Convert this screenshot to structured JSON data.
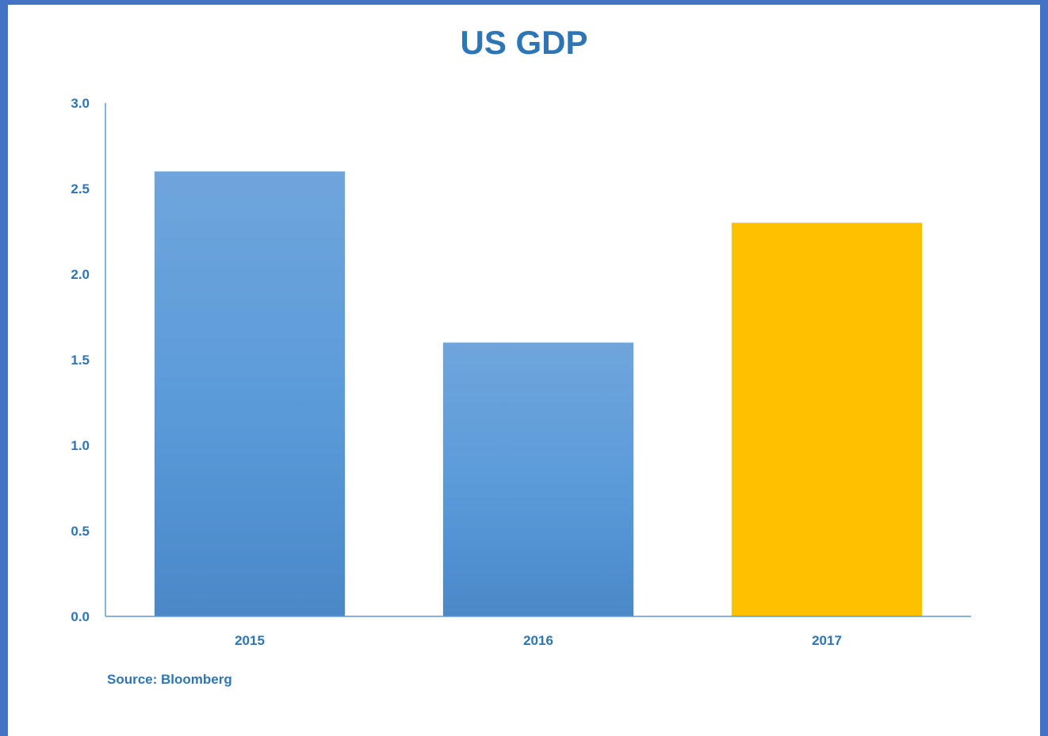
{
  "chart_data": {
    "type": "bar",
    "title": "US GDP",
    "categories": [
      "2015",
      "2016",
      "2017"
    ],
    "values": [
      2.6,
      1.6,
      2.3
    ],
    "bar_colors": [
      "#5b9bd5",
      "#5b9bd5",
      "#ffc000"
    ],
    "ylim": [
      0,
      3.0
    ],
    "yticks": [
      "0.0",
      "0.5",
      "1.0",
      "1.5",
      "2.0",
      "2.5",
      "3.0"
    ],
    "xlabel": "",
    "ylabel": "",
    "grid": false,
    "legend": "none",
    "source": "Source: Bloomberg"
  },
  "colors": {
    "border": "#4472c4",
    "text": "#2e75b6",
    "axis": "#5b9bd5"
  }
}
